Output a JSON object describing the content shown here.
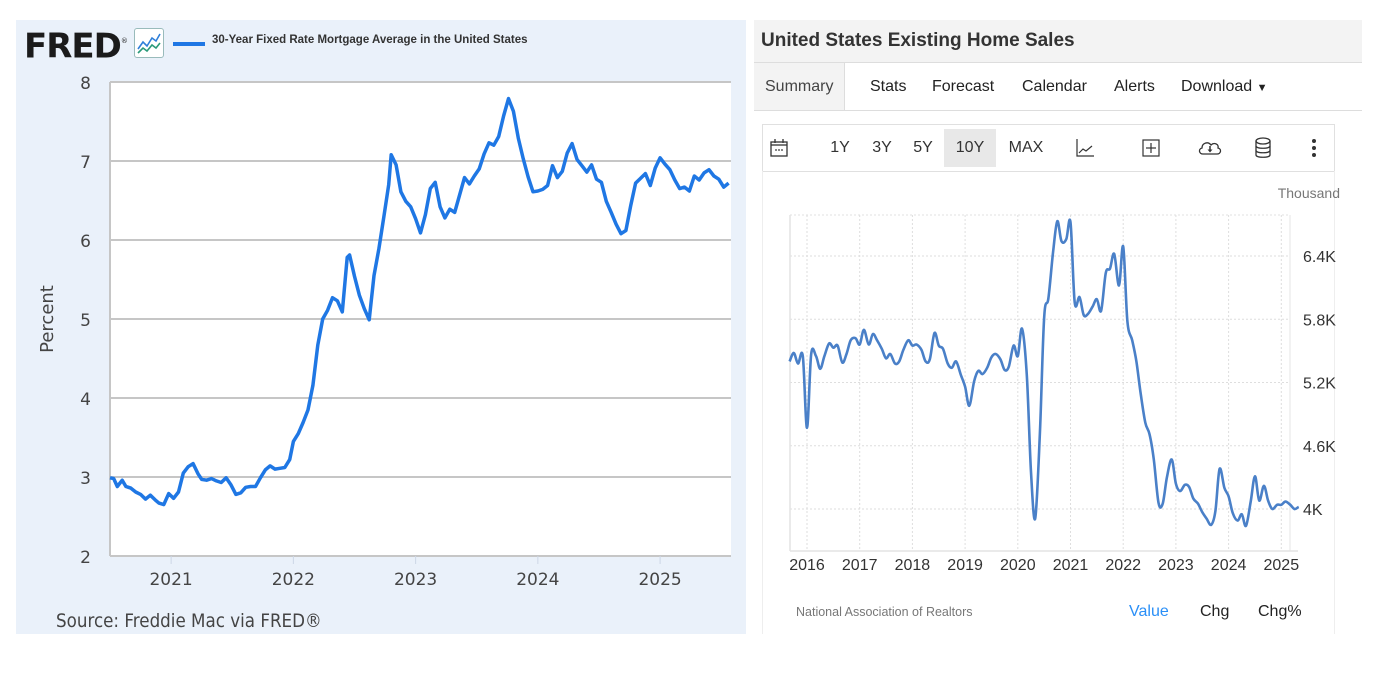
{
  "fred_panel": {
    "logo": "FRED",
    "legend": "30-Year Fixed Rate Mortgage Average in the United States",
    "series_color": "#1f77e4",
    "source": "Source: Freddie Mac via FRED®"
  },
  "te_panel": {
    "title": "United States Existing Home Sales",
    "tabs": [
      {
        "label": "Summary",
        "active": true
      },
      {
        "label": "Stats"
      },
      {
        "label": "Forecast"
      },
      {
        "label": "Calendar"
      },
      {
        "label": "Alerts"
      },
      {
        "label": "Download"
      }
    ],
    "range_buttons": [
      {
        "label": "1Y"
      },
      {
        "label": "3Y"
      },
      {
        "label": "5Y"
      },
      {
        "label": "10Y",
        "active": true
      },
      {
        "label": "MAX"
      }
    ],
    "toolbar_icons": [
      "calendar-icon",
      "line-chart-icon",
      "add-icon",
      "cloud-download-icon",
      "database-icon",
      "more-vertical-icon"
    ],
    "unit": "Thousand",
    "source": "National Association of Realtors",
    "value_tabs": [
      {
        "label": "Value",
        "active": true
      },
      {
        "label": "Chg"
      },
      {
        "label": "Chg%"
      }
    ],
    "accent_color": "#2a8ff7",
    "series_color": "#4a80c8"
  },
  "chart_data": [
    {
      "type": "line",
      "title": "30-Year Fixed Rate Mortgage Average in the United States",
      "xlabel": "",
      "ylabel": "Percent",
      "ylim": [
        2,
        8
      ],
      "xlim": [
        2020.5,
        2025.58
      ],
      "yticks": [
        "2",
        "3",
        "4",
        "5",
        "6",
        "7",
        "8"
      ],
      "xticks": [
        "2021",
        "2022",
        "2023",
        "2024",
        "2025"
      ],
      "grid": true,
      "legend": "top-left",
      "series": [
        {
          "name": "30-Year Fixed Rate Mortgage Average in the United States",
          "x": [
            2020.5,
            2020.53,
            2020.56,
            2020.6,
            2020.63,
            2020.67,
            2020.71,
            2020.75,
            2020.79,
            2020.83,
            2020.87,
            2020.9,
            2020.94,
            2020.98,
            2021.02,
            2021.06,
            2021.1,
            2021.14,
            2021.18,
            2021.22,
            2021.25,
            2021.29,
            2021.33,
            2021.37,
            2021.41,
            2021.45,
            2021.49,
            2021.53,
            2021.57,
            2021.61,
            2021.65,
            2021.69,
            2021.73,
            2021.77,
            2021.81,
            2021.85,
            2021.89,
            2021.93,
            2021.97,
            2022.0,
            2022.04,
            2022.08,
            2022.12,
            2022.16,
            2022.2,
            2022.24,
            2022.28,
            2022.32,
            2022.36,
            2022.4,
            2022.44,
            2022.46,
            2022.5,
            2022.54,
            2022.58,
            2022.62,
            2022.66,
            2022.7,
            2022.74,
            2022.78,
            2022.8,
            2022.84,
            2022.88,
            2022.92,
            2022.96,
            2023.0,
            2023.04,
            2023.08,
            2023.12,
            2023.16,
            2023.2,
            2023.24,
            2023.28,
            2023.32,
            2023.36,
            2023.4,
            2023.44,
            2023.48,
            2023.52,
            2023.56,
            2023.6,
            2023.64,
            2023.68,
            2023.72,
            2023.76,
            2023.8,
            2023.84,
            2023.88,
            2023.92,
            2023.96,
            2024.0,
            2024.04,
            2024.08,
            2024.12,
            2024.16,
            2024.2,
            2024.24,
            2024.28,
            2024.32,
            2024.36,
            2024.4,
            2024.44,
            2024.48,
            2024.52,
            2024.56,
            2024.6,
            2024.64,
            2024.68,
            2024.72,
            2024.76,
            2024.8,
            2024.84,
            2024.88,
            2024.92,
            2024.96,
            2025.0,
            2025.04,
            2025.08,
            2025.12,
            2025.16,
            2025.2,
            2025.24,
            2025.28,
            2025.32,
            2025.36,
            2025.4,
            2025.44,
            2025.48,
            2025.52,
            2025.56
          ],
          "values": [
            2.99,
            2.98,
            2.88,
            2.96,
            2.88,
            2.86,
            2.81,
            2.78,
            2.72,
            2.77,
            2.71,
            2.67,
            2.65,
            2.79,
            2.73,
            2.81,
            3.05,
            3.13,
            3.17,
            3.04,
            2.97,
            2.96,
            2.98,
            2.95,
            2.93,
            2.99,
            2.9,
            2.78,
            2.8,
            2.87,
            2.88,
            2.88,
            2.99,
            3.09,
            3.14,
            3.1,
            3.11,
            3.12,
            3.22,
            3.45,
            3.55,
            3.69,
            3.85,
            4.16,
            4.67,
            5.0,
            5.11,
            5.27,
            5.23,
            5.09,
            5.78,
            5.81,
            5.54,
            5.3,
            5.13,
            4.99,
            5.55,
            5.89,
            6.29,
            6.7,
            7.08,
            6.95,
            6.61,
            6.49,
            6.42,
            6.27,
            6.09,
            6.32,
            6.65,
            6.73,
            6.42,
            6.28,
            6.39,
            6.35,
            6.57,
            6.79,
            6.71,
            6.81,
            6.9,
            7.09,
            7.23,
            7.2,
            7.31,
            7.57,
            7.79,
            7.63,
            7.29,
            7.03,
            6.8,
            6.61,
            6.62,
            6.64,
            6.69,
            6.94,
            6.79,
            6.87,
            7.1,
            7.22,
            7.02,
            6.94,
            6.86,
            6.95,
            6.77,
            6.73,
            6.49,
            6.35,
            6.2,
            6.08,
            6.12,
            6.44,
            6.72,
            6.78,
            6.84,
            6.69,
            6.91,
            7.04,
            6.96,
            6.89,
            6.76,
            6.65,
            6.67,
            6.62,
            6.81,
            6.76,
            6.85,
            6.89,
            6.81,
            6.77,
            6.67,
            6.72
          ]
        }
      ]
    },
    {
      "type": "line",
      "title": "United States Existing Home Sales",
      "xlabel": "",
      "ylabel": "Thousand",
      "ylim": [
        3650,
        6800
      ],
      "xlim": [
        2015.67,
        2025.35
      ],
      "yticks": [
        "4K",
        "4.6K",
        "5.2K",
        "5.8K",
        "6.4K"
      ],
      "xticks": [
        "2016",
        "2017",
        "2018",
        "2019",
        "2020",
        "2021",
        "2022",
        "2023",
        "2024",
        "2025"
      ],
      "grid": true,
      "legend": "none",
      "series": [
        {
          "name": "Existing Home Sales",
          "x": [
            2015.67,
            2015.75,
            2015.83,
            2015.92,
            2016.0,
            2016.08,
            2016.17,
            2016.25,
            2016.33,
            2016.42,
            2016.5,
            2016.58,
            2016.67,
            2016.75,
            2016.83,
            2016.92,
            2017.0,
            2017.08,
            2017.17,
            2017.25,
            2017.33,
            2017.42,
            2017.5,
            2017.58,
            2017.67,
            2017.75,
            2017.83,
            2017.92,
            2018.0,
            2018.08,
            2018.17,
            2018.25,
            2018.33,
            2018.42,
            2018.5,
            2018.58,
            2018.67,
            2018.75,
            2018.83,
            2018.92,
            2019.0,
            2019.08,
            2019.17,
            2019.25,
            2019.33,
            2019.42,
            2019.5,
            2019.58,
            2019.67,
            2019.75,
            2019.83,
            2019.92,
            2020.0,
            2020.08,
            2020.17,
            2020.25,
            2020.33,
            2020.42,
            2020.5,
            2020.58,
            2020.67,
            2020.75,
            2020.83,
            2020.92,
            2021.0,
            2021.08,
            2021.17,
            2021.25,
            2021.33,
            2021.42,
            2021.5,
            2021.58,
            2021.67,
            2021.75,
            2021.83,
            2021.92,
            2022.0,
            2022.08,
            2022.17,
            2022.25,
            2022.33,
            2022.42,
            2022.5,
            2022.58,
            2022.67,
            2022.75,
            2022.83,
            2022.92,
            2023.0,
            2023.08,
            2023.17,
            2023.25,
            2023.33,
            2023.42,
            2023.5,
            2023.58,
            2023.67,
            2023.75,
            2023.83,
            2023.92,
            2024.0,
            2024.08,
            2024.17,
            2024.25,
            2024.33,
            2024.42,
            2024.5,
            2024.58,
            2024.67,
            2024.75,
            2024.83,
            2024.92,
            2025.0,
            2025.08,
            2025.17,
            2025.25,
            2025.33
          ],
          "values": [
            5.4,
            5.48,
            5.38,
            5.45,
            4.77,
            5.47,
            5.45,
            5.33,
            5.45,
            5.57,
            5.53,
            5.55,
            5.39,
            5.47,
            5.6,
            5.62,
            5.56,
            5.7,
            5.56,
            5.66,
            5.6,
            5.52,
            5.43,
            5.47,
            5.38,
            5.4,
            5.51,
            5.6,
            5.55,
            5.56,
            5.51,
            5.4,
            5.42,
            5.67,
            5.55,
            5.52,
            5.38,
            5.34,
            5.4,
            5.27,
            5.16,
            4.98,
            5.21,
            5.31,
            5.28,
            5.34,
            5.44,
            5.47,
            5.42,
            5.32,
            5.35,
            5.55,
            5.45,
            5.71,
            5.27,
            4.35,
            3.91,
            4.72,
            5.82,
            6.0,
            6.44,
            6.73,
            6.54,
            6.56,
            6.72,
            5.96,
            6.01,
            5.84,
            5.85,
            5.92,
            5.99,
            5.88,
            6.24,
            6.28,
            6.42,
            6.12,
            6.49,
            5.78,
            5.6,
            5.4,
            5.1,
            4.82,
            4.71,
            4.47,
            4.06,
            4.05,
            4.3,
            4.47,
            4.24,
            4.17,
            4.23,
            4.21,
            4.1,
            4.05,
            3.97,
            3.91,
            3.85,
            3.98,
            4.38,
            4.2,
            4.12,
            3.96,
            3.89,
            3.95,
            3.84,
            4.07,
            4.31,
            4.08,
            4.22,
            4.08,
            4.0,
            4.04,
            4.04,
            4.07,
            4.04,
            4.0,
            4.02
          ]
        }
      ]
    }
  ]
}
